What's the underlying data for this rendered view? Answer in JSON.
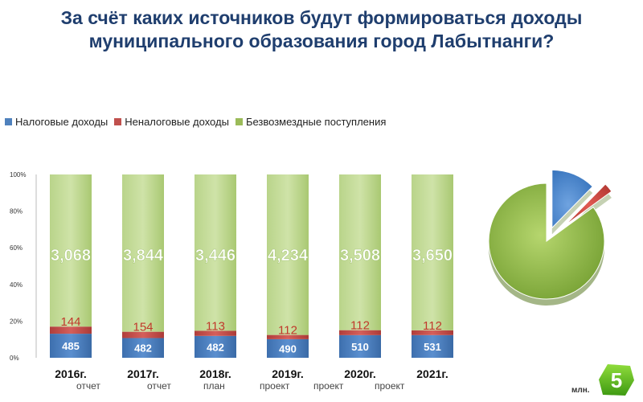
{
  "title_line1": "За счёт каких источников будут формироваться доходы",
  "title_line2": "муниципального образования город Лабытнанги?",
  "unit_label": "млн.",
  "page_number": "5",
  "colors": {
    "tax": "#4f81bd",
    "nontax": "#c0504d",
    "grants": "#9bbb59",
    "title": "#1f3e6e"
  },
  "chart_data": {
    "type": "bar",
    "stacked": "percent",
    "categories": [
      "2016г.",
      "2017г.",
      "2018г.",
      "2019г.",
      "2020г.",
      "2021г."
    ],
    "category_notes": [
      "отчет",
      "отчет",
      "план",
      "проект",
      "проект",
      "проект"
    ],
    "series": [
      {
        "name": "Налоговые  доходы",
        "values": [
          485,
          482,
          482,
          490,
          510,
          531
        ],
        "color": "#4f81bd"
      },
      {
        "name": "Неналоговые доходы",
        "values": [
          144,
          154,
          113,
          112,
          112,
          112
        ],
        "color": "#c0504d"
      },
      {
        "name": "Безвозмездные поступления",
        "values": [
          3068,
          3844,
          3446,
          4234,
          3508,
          3650
        ],
        "color": "#9bbb59"
      }
    ],
    "value_labels": {
      "tax": [
        "485",
        "482",
        "482",
        "490",
        "510",
        "531"
      ],
      "nontax": [
        "144",
        "154",
        "113",
        "112",
        "112",
        "112"
      ],
      "grants": [
        "3,068",
        "3,844",
        "3,446",
        "4,234",
        "3,508",
        "3,650"
      ]
    },
    "y_ticks": [
      "0%",
      "20%",
      "40%",
      "60%",
      "80%",
      "100%"
    ],
    "ylim": [
      0,
      100
    ],
    "legend_position": "top-left",
    "grid": false
  },
  "pie_chart": {
    "type": "pie",
    "exploded": true,
    "slices": [
      {
        "name": "Налоговые  доходы",
        "value": 531,
        "color": "#4f81bd"
      },
      {
        "name": "Неналоговые доходы",
        "value": 112,
        "color": "#c0504d"
      },
      {
        "name": "Безвозмездные поступления",
        "value": 3650,
        "color": "#9bbb59"
      }
    ]
  }
}
